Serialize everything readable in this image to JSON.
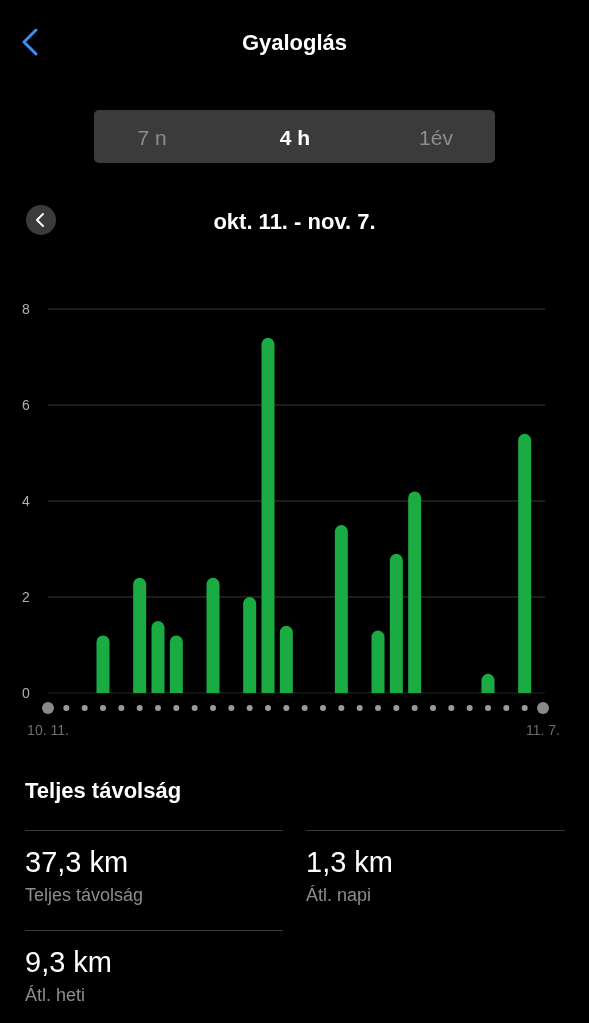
{
  "chart_data": {
    "type": "bar",
    "title": "Gyaloglás",
    "subtitle": "okt. 11. - nov. 7.",
    "categories": [
      "10. 11.",
      null,
      null,
      null,
      null,
      null,
      null,
      null,
      null,
      null,
      null,
      null,
      null,
      null,
      null,
      null,
      null,
      null,
      null,
      null,
      null,
      null,
      null,
      null,
      null,
      null,
      null,
      "11. 7."
    ],
    "values": [
      0,
      0,
      0,
      1.2,
      0,
      2.4,
      1.5,
      1.2,
      0,
      2.4,
      0,
      2.0,
      7.4,
      1.4,
      0,
      0,
      3.5,
      0,
      1.3,
      2.9,
      4.2,
      0,
      0,
      0,
      0.4,
      0,
      5.4,
      0
    ],
    "color": "#1aab42",
    "ylim": [
      0,
      8
    ],
    "yticks": [
      0,
      2,
      4,
      6,
      8
    ],
    "grid": "y",
    "annotations": [
      "7 n",
      "4 h",
      "1év",
      "Teljes távolság",
      "37,3 km",
      "Teljes távolság",
      "1,3 km",
      "Átl. napi",
      "9,3 km",
      "Átl. heti"
    ]
  }
}
